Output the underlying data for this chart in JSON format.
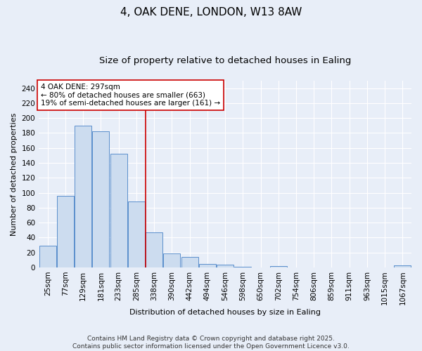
{
  "title1": "4, OAK DENE, LONDON, W13 8AW",
  "title2": "Size of property relative to detached houses in Ealing",
  "xlabel": "Distribution of detached houses by size in Ealing",
  "ylabel": "Number of detached properties",
  "categories": [
    "25sqm",
    "77sqm",
    "129sqm",
    "181sqm",
    "233sqm",
    "285sqm",
    "338sqm",
    "390sqm",
    "442sqm",
    "494sqm",
    "546sqm",
    "598sqm",
    "650sqm",
    "702sqm",
    "754sqm",
    "806sqm",
    "859sqm",
    "911sqm",
    "963sqm",
    "1015sqm",
    "1067sqm"
  ],
  "values": [
    29,
    96,
    190,
    182,
    152,
    88,
    47,
    19,
    14,
    5,
    4,
    1,
    0,
    2,
    0,
    0,
    0,
    0,
    0,
    0,
    3
  ],
  "bar_color": "#ccdcef",
  "bar_edge_color": "#5b8fcc",
  "vline_x": 5.5,
  "vline_color": "#cc0000",
  "annotation_text": "4 OAK DENE: 297sqm\n← 80% of detached houses are smaller (663)\n19% of semi-detached houses are larger (161) →",
  "annotation_box_color": "#ffffff",
  "annotation_box_edge_color": "#cc0000",
  "ylim": [
    0,
    250
  ],
  "yticks": [
    0,
    20,
    40,
    60,
    80,
    100,
    120,
    140,
    160,
    180,
    200,
    220,
    240
  ],
  "bg_color": "#e8eef8",
  "plot_bg_color": "#e8eef8",
  "grid_color": "#ffffff",
  "footer1": "Contains HM Land Registry data © Crown copyright and database right 2025.",
  "footer2": "Contains public sector information licensed under the Open Government Licence v3.0.",
  "title_fontsize": 11,
  "subtitle_fontsize": 9.5,
  "axis_label_fontsize": 8,
  "tick_fontsize": 7.5,
  "annotation_fontsize": 7.5,
  "footer_fontsize": 6.5
}
